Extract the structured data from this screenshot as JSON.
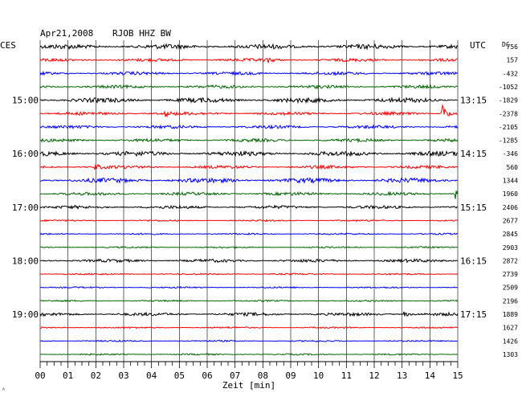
{
  "header": {
    "date": "Apr21,2008",
    "station": "RJOB HHZ BW",
    "left_zone": "CES",
    "right_zone": "UTC",
    "dc_label": "DC"
  },
  "chart_data": {
    "type": "line",
    "title": "Apr21,2008   RJOB HHZ BW",
    "xlabel": "Zeit [min]",
    "ylabel": "",
    "xlim": [
      0,
      15
    ],
    "x_ticks": [
      "00",
      "01",
      "02",
      "03",
      "04",
      "05",
      "06",
      "07",
      "08",
      "09",
      "10",
      "11",
      "12",
      "13",
      "14",
      "15"
    ],
    "grid": true,
    "left_time_labels": [
      {
        "row": 4,
        "label": "15:00"
      },
      {
        "row": 8,
        "label": "16:00"
      },
      {
        "row": 12,
        "label": "17:00"
      },
      {
        "row": 16,
        "label": "18:00"
      },
      {
        "row": 20,
        "label": "19:00"
      }
    ],
    "right_time_labels": [
      {
        "row": 4,
        "label": "13:15"
      },
      {
        "row": 8,
        "label": "14:15"
      },
      {
        "row": 12,
        "label": "15:15"
      },
      {
        "row": 16,
        "label": "16:15"
      },
      {
        "row": 20,
        "label": "17:15"
      }
    ],
    "dc_offsets": [
      "756",
      "157",
      "-432",
      "-1052",
      "-1829",
      "-2378",
      "-2105",
      "-1285",
      "-346",
      "560",
      "1344",
      "1960",
      "2406",
      "2677",
      "2845",
      "2903",
      "2872",
      "2739",
      "2509",
      "2196",
      "1889",
      "1627",
      "1426",
      "1303"
    ],
    "trace_colors": [
      "#000000",
      "#ff0000",
      "#0000ff",
      "#006600"
    ],
    "trace_amplitude": [
      3,
      2,
      2,
      2,
      3,
      2,
      2,
      2,
      3,
      2,
      3,
      2,
      2,
      1,
      1,
      1,
      2,
      1,
      1,
      1,
      2,
      1,
      1,
      1
    ],
    "events": [
      {
        "row": 5,
        "minute": 14.45,
        "amplitude": 12
      },
      {
        "row": 11,
        "minute": 14.95,
        "amplitude": 6
      },
      {
        "row": 1,
        "minute": 8.2,
        "amplitude": 3
      },
      {
        "row": 5,
        "minute": 4.5,
        "amplitude": 3
      },
      {
        "row": 9,
        "minute": 2.0,
        "amplitude": 3
      },
      {
        "row": 20,
        "minute": 13.1,
        "amplitude": 3
      }
    ]
  },
  "corner_mark": "ᴬ"
}
